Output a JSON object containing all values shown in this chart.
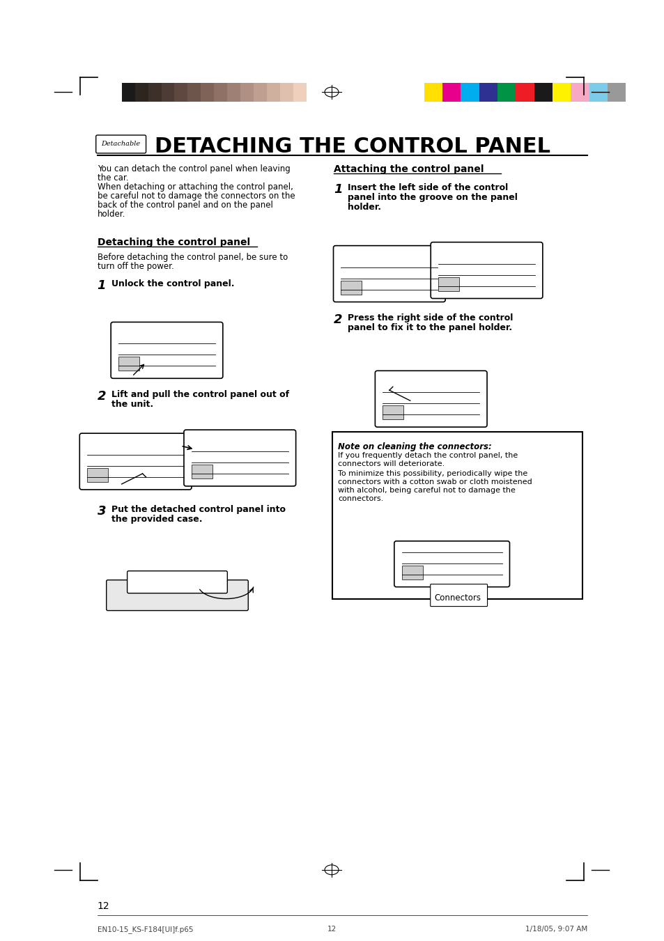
{
  "page_bg": "#ffffff",
  "color_strip_left": [
    "#1a1a1a",
    "#2d2520",
    "#3d302a",
    "#4d3c35",
    "#5e4840",
    "#6e554c",
    "#7f6358",
    "#8f7166",
    "#9f8074",
    "#af9082",
    "#bfa090",
    "#cfb09f",
    "#dfbfad",
    "#efd0bd",
    "#ffffff"
  ],
  "color_strip_right": [
    "#ffe000",
    "#e8008c",
    "#00aeef",
    "#2e3192",
    "#009245",
    "#ee1c25",
    "#1a1a1a",
    "#fff200",
    "#f7a8c4",
    "#7acce8",
    "#999999"
  ],
  "title": "DETACHING THE CONTROL PANEL",
  "detach_label": "Detachable",
  "left_intro_1": "You can detach the control panel when leaving",
  "left_intro_2": "the car.",
  "left_intro_3": "When detaching or attaching the control panel,",
  "left_intro_4": "be careful not to damage the connectors on the",
  "left_intro_5": "back of the control panel and on the panel",
  "left_intro_6": "holder.",
  "detach_section_title": "Detaching the control panel",
  "detach_before_1": "Before detaching the control panel, be sure to",
  "detach_before_2": "turn off the power.",
  "step1_detach": "Unlock the control panel.",
  "step2_detach_1": "Lift and pull the control panel out of",
  "step2_detach_2": "the unit.",
  "step3_detach_1": "Put the detached control panel into",
  "step3_detach_2": "the provided case.",
  "attach_section_title": "Attaching the control panel",
  "step1_attach_1": "Insert the left side of the control",
  "step1_attach_2": "panel into the groove on the panel",
  "step1_attach_3": "holder.",
  "step2_attach_1": "Press the right side of the control",
  "step2_attach_2": "panel to fix it to the panel holder.",
  "note_title": "Note on cleaning the connectors:",
  "note_text_1": "If you frequently detach the control panel, the",
  "note_text_2": "connectors will deteriorate.",
  "note_text_3": "To minimize this possibility, periodically wipe the",
  "note_text_4": "connectors with a cotton swab or cloth moistened",
  "note_text_5": "with alcohol, being careful not to damage the",
  "note_text_6": "connectors.",
  "connectors_label": "Connectors",
  "page_number": "12",
  "footer_left": "EN10-15_KS-F184[UI]f.p65",
  "footer_center": "12",
  "footer_right": "1/18/05, 9:07 AM"
}
